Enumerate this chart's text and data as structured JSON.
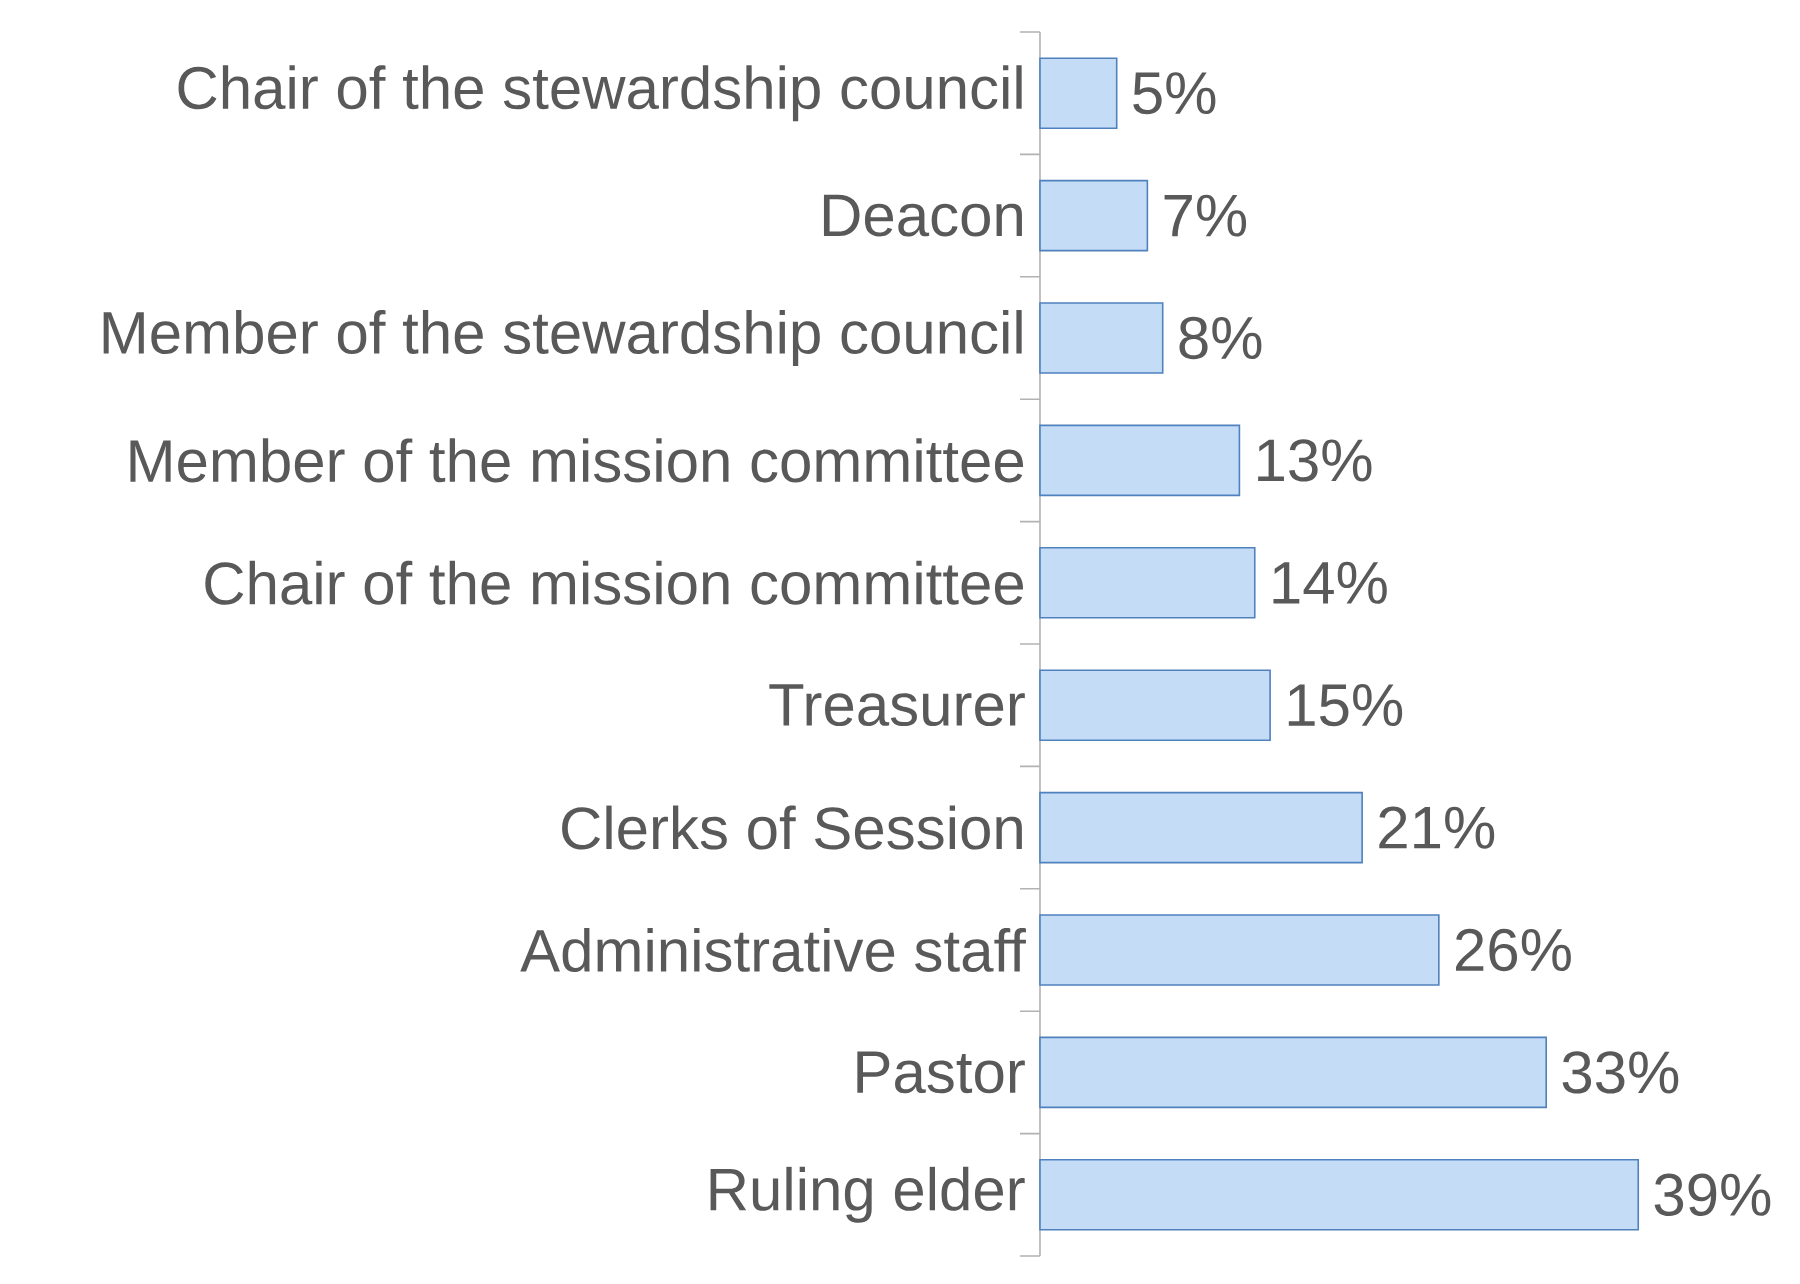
{
  "chart_data": {
    "type": "bar",
    "orientation": "horizontal",
    "categories": [
      "Chair of the stewardship council",
      "Deacon",
      "Member of the stewardship council",
      "Member of the mission committee",
      "Chair of the mission committee",
      "Treasurer",
      "Clerks of Session",
      "Administrative staff",
      "Pastor",
      "Ruling elder"
    ],
    "values": [
      5,
      7,
      8,
      13,
      14,
      15,
      21,
      26,
      33,
      39
    ],
    "value_labels": [
      "5%",
      "7%",
      "8%",
      "13%",
      "14%",
      "15%",
      "21%",
      "26%",
      "33%",
      "39%"
    ],
    "color": "#c5dcf7"
  }
}
